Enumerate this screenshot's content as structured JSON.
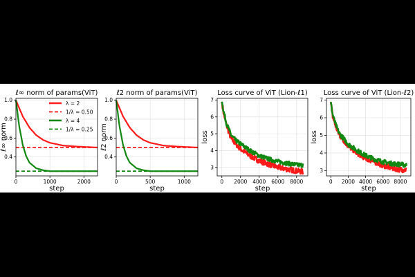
{
  "chart_data": [
    {
      "type": "line",
      "title": "ℓ∞ norm of params(ViT)",
      "xlabel": "step",
      "ylabel": "ℓ∞ norm",
      "xlim": [
        0,
        2400
      ],
      "ylim": [
        0.2,
        1.02
      ],
      "xticks": [
        0,
        1000,
        2000
      ],
      "yticks": [
        0.4,
        0.6,
        0.8,
        1.0
      ],
      "ytick_labels": [
        "0.4",
        "0.6",
        "0.8",
        "1.0"
      ],
      "grid": true,
      "legend": "top-right",
      "series": [
        {
          "name": "λ = 2",
          "color": "#ff1a1a",
          "style": "solid",
          "x": [
            0,
            200,
            400,
            600,
            800,
            1000,
            1400,
            1800,
            2400
          ],
          "y": [
            1.0,
            0.83,
            0.71,
            0.63,
            0.58,
            0.55,
            0.52,
            0.51,
            0.5
          ]
        },
        {
          "name": "1/λ = 0.50",
          "color": "#ff1a1a",
          "style": "dashed",
          "x": [
            0,
            2400
          ],
          "y": [
            0.5,
            0.5
          ]
        },
        {
          "name": "λ = 4",
          "color": "#118811",
          "style": "solid",
          "x": [
            0,
            100,
            200,
            300,
            400,
            600,
            800,
            1000,
            2400
          ],
          "y": [
            1.0,
            0.72,
            0.53,
            0.41,
            0.34,
            0.28,
            0.26,
            0.25,
            0.25
          ]
        },
        {
          "name": "1/λ = 0.25",
          "color": "#118811",
          "style": "dashed",
          "x": [
            0,
            2400
          ],
          "y": [
            0.25,
            0.25
          ]
        }
      ]
    },
    {
      "type": "line",
      "title": "ℓ2 norm of params(ViT)",
      "xlabel": "step",
      "ylabel": "ℓ2 norm",
      "xlim": [
        0,
        1200
      ],
      "ylim": [
        0.2,
        1.02
      ],
      "xticks": [
        0,
        500,
        1000
      ],
      "yticks": [
        0.4,
        0.6,
        0.8,
        1.0
      ],
      "ytick_labels": [
        "0.4",
        "0.6",
        "0.8",
        "1.0"
      ],
      "grid": true,
      "series": [
        {
          "color": "#ff1a1a",
          "style": "solid",
          "x": [
            0,
            100,
            200,
            300,
            400,
            500,
            700,
            900,
            1200
          ],
          "y": [
            1.0,
            0.83,
            0.71,
            0.63,
            0.58,
            0.55,
            0.52,
            0.51,
            0.5
          ]
        },
        {
          "color": "#ff1a1a",
          "style": "dashed",
          "x": [
            0,
            1200
          ],
          "y": [
            0.5,
            0.5
          ]
        },
        {
          "color": "#118811",
          "style": "solid",
          "x": [
            0,
            50,
            100,
            150,
            200,
            300,
            400,
            500,
            1200
          ],
          "y": [
            1.0,
            0.72,
            0.53,
            0.41,
            0.34,
            0.28,
            0.26,
            0.25,
            0.25
          ]
        },
        {
          "color": "#118811",
          "style": "dashed",
          "x": [
            0,
            1200
          ],
          "y": [
            0.25,
            0.25
          ]
        }
      ]
    },
    {
      "type": "line",
      "title": "Loss curve of ViT (Lion-ℓ1)",
      "xlabel": "step",
      "ylabel": "loss",
      "xlim": [
        -500,
        9200
      ],
      "ylim": [
        2.5,
        7.1
      ],
      "xticks": [
        0,
        2000,
        4000,
        6000,
        8000
      ],
      "yticks": [
        3,
        4,
        5,
        6,
        7
      ],
      "ytick_labels": [
        "3",
        "4",
        "5",
        "6",
        "7"
      ],
      "grid": true,
      "series": [
        {
          "color": "#ff1a1a",
          "x": [
            0,
            200,
            500,
            800,
            1000,
            1500,
            2000,
            3000,
            4000,
            5000,
            6000,
            7000,
            8000,
            8700
          ],
          "y": [
            6.9,
            6.2,
            5.5,
            5.0,
            4.7,
            4.4,
            4.1,
            3.7,
            3.4,
            3.2,
            3.0,
            2.9,
            2.8,
            2.75
          ],
          "noise": 0.16
        },
        {
          "color": "#118811",
          "x": [
            0,
            200,
            500,
            800,
            1000,
            1500,
            2000,
            3000,
            4000,
            5000,
            6000,
            7000,
            8000,
            8700
          ],
          "y": [
            6.9,
            6.3,
            5.6,
            5.2,
            4.9,
            4.6,
            4.4,
            4.0,
            3.7,
            3.5,
            3.35,
            3.25,
            3.15,
            3.15
          ],
          "noise": 0.13
        }
      ]
    },
    {
      "type": "line",
      "title": "Loss curve of ViT (Lion-ℓ2)",
      "xlabel": "step",
      "ylabel": "loss",
      "xlim": [
        -500,
        9200
      ],
      "ylim": [
        2.7,
        7.1
      ],
      "xticks": [
        0,
        2000,
        4000,
        6000,
        8000
      ],
      "yticks": [
        3,
        4,
        5,
        6,
        7
      ],
      "ytick_labels": [
        "3",
        "4",
        "5",
        "6",
        "7"
      ],
      "grid": true,
      "series": [
        {
          "color": "#ff1a1a",
          "x": [
            0,
            200,
            500,
            800,
            1000,
            1500,
            2000,
            3000,
            4000,
            5000,
            6000,
            7000,
            8000,
            8700
          ],
          "y": [
            6.9,
            6.1,
            5.6,
            5.2,
            5.0,
            4.7,
            4.4,
            4.0,
            3.7,
            3.5,
            3.3,
            3.15,
            3.05,
            3.05
          ],
          "noise": 0.15
        },
        {
          "color": "#118811",
          "x": [
            0,
            200,
            500,
            800,
            1000,
            1500,
            2000,
            3000,
            4000,
            5000,
            6000,
            7000,
            8000,
            8700
          ],
          "y": [
            6.9,
            6.2,
            5.7,
            5.3,
            5.1,
            4.8,
            4.5,
            4.15,
            3.85,
            3.65,
            3.5,
            3.4,
            3.35,
            3.3
          ],
          "noise": 0.13
        }
      ]
    }
  ]
}
